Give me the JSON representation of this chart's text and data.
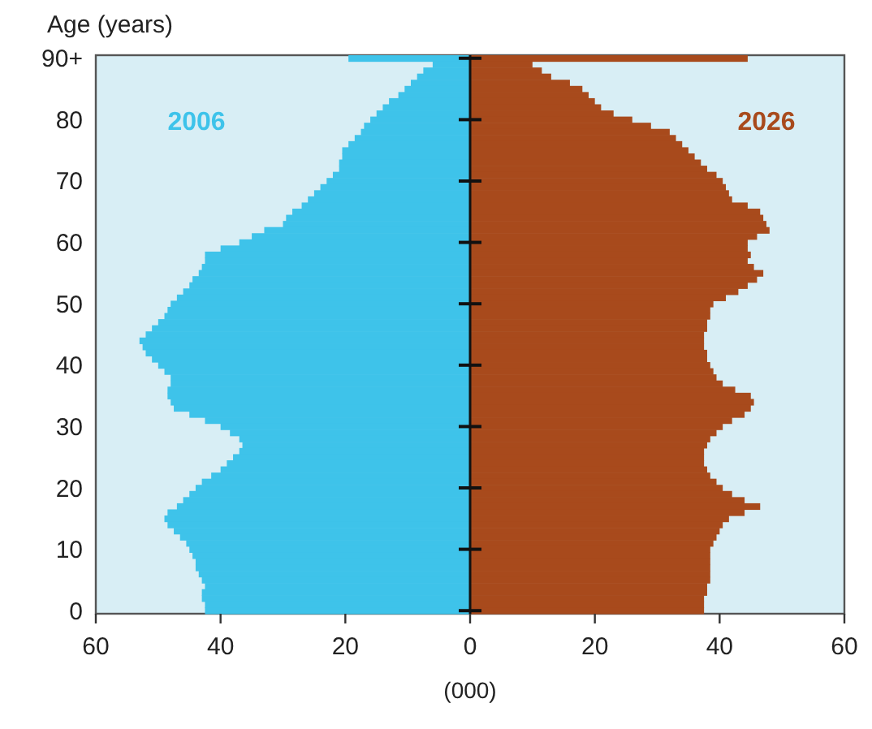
{
  "chart_data": {
    "type": "bar",
    "orientation": "horizontal",
    "ylabel": "Age (years)",
    "xlabel": "(000)",
    "categories": [
      "90+",
      null,
      null,
      null,
      null,
      null,
      null,
      null,
      null,
      null,
      "80",
      null,
      null,
      null,
      null,
      null,
      null,
      null,
      null,
      null,
      "70",
      null,
      null,
      null,
      null,
      null,
      null,
      null,
      null,
      null,
      "60",
      null,
      null,
      null,
      null,
      null,
      null,
      null,
      null,
      null,
      "50",
      null,
      null,
      null,
      null,
      null,
      null,
      null,
      null,
      null,
      "40",
      null,
      null,
      null,
      null,
      null,
      null,
      null,
      null,
      null,
      "30",
      null,
      null,
      null,
      null,
      null,
      null,
      null,
      null,
      null,
      "20",
      null,
      null,
      null,
      null,
      null,
      null,
      null,
      null,
      null,
      "10",
      null,
      null,
      null,
      null,
      null,
      null,
      null,
      null,
      null,
      "0"
    ],
    "stacked": true,
    "xlim": [
      -60,
      60
    ],
    "xticks": [
      {
        "value": -60,
        "label": "60"
      },
      {
        "value": -40,
        "label": "40"
      },
      {
        "value": -20,
        "label": "20"
      },
      0,
      20,
      40,
      60
    ],
    "series": [
      {
        "name": "2006",
        "color": "#3ec3ea",
        "values": [
          -19.5,
          -6,
          -7.5,
          -8.5,
          -9.5,
          -10.5,
          -11.5,
          -13,
          -14,
          -15,
          -16,
          -17,
          -17.5,
          -18.5,
          -19.5,
          -20.5,
          -20.5,
          -21,
          -21,
          -22,
          -23,
          -24,
          -25,
          -26,
          -27,
          -28.5,
          -29.5,
          -30,
          -33,
          -35,
          -37,
          -40,
          -42.5,
          -42.5,
          -43,
          -43.5,
          -44.5,
          -45,
          -46,
          -47,
          -48,
          -48.5,
          -49,
          -50,
          -51,
          -52,
          -53,
          -52.5,
          -52,
          -51,
          -50,
          -49,
          -48,
          -48,
          -48.5,
          -48.5,
          -48,
          -47.5,
          -45,
          -42.5,
          -40,
          -38.5,
          -37,
          -36.5,
          -37,
          -38,
          -39,
          -40,
          -41.5,
          -43,
          -44,
          -45,
          -46,
          -47,
          -48.5,
          -49,
          -48.5,
          -47.5,
          -46.5,
          -45.5,
          -45,
          -44.5,
          -44,
          -44,
          -43.5,
          -43,
          -42.5,
          -43,
          -43,
          -42.5,
          -42.5
        ]
      },
      {
        "name": "2026",
        "color": "#a84a1c",
        "values": [
          44.5,
          10,
          11.5,
          13,
          16,
          18,
          19,
          20,
          21,
          23,
          26,
          29,
          32,
          33,
          34,
          35,
          36,
          37,
          38,
          39.5,
          40.5,
          41,
          41.5,
          42,
          44.5,
          46.5,
          47,
          47.5,
          48,
          46,
          44.5,
          44.5,
          45,
          44.5,
          45.5,
          47,
          46,
          44.5,
          43,
          41,
          39,
          38.5,
          38.5,
          38,
          38,
          37.5,
          37.5,
          37.5,
          38,
          38,
          38.5,
          39,
          39.5,
          40.5,
          42.5,
          45,
          45.5,
          45,
          44,
          42,
          40.5,
          39.5,
          38.5,
          38,
          37.5,
          37.5,
          37.5,
          38,
          38.5,
          39.5,
          40.5,
          42,
          44,
          46.5,
          44,
          41.5,
          40.5,
          40,
          39.5,
          39,
          38.5,
          38.5,
          38.5,
          38.5,
          38.5,
          38.5,
          38,
          38,
          37.5,
          37.5,
          37.5
        ]
      }
    ]
  }
}
